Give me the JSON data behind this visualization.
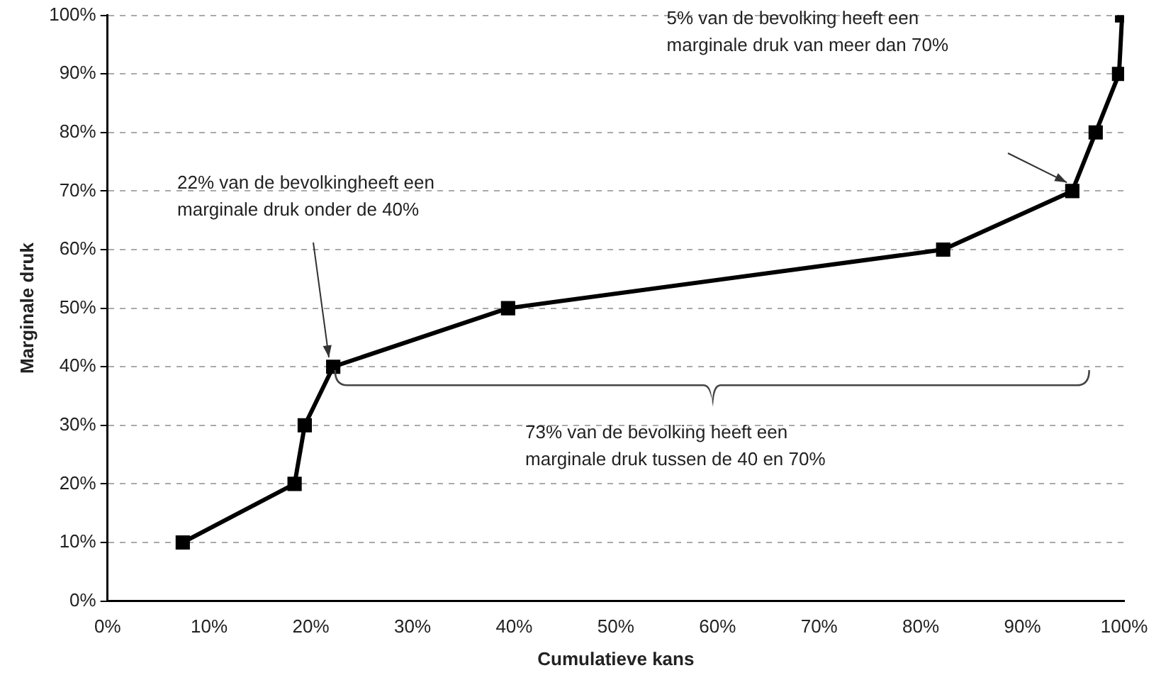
{
  "chart_data": {
    "type": "line",
    "xlabel": "Cumulatieve kans",
    "ylabel": "Marginale druk",
    "x": [
      7.4,
      18.4,
      19.4,
      22.2,
      39.4,
      82.2,
      94.9,
      97.2,
      99.5,
      99.8
    ],
    "series": [
      {
        "color": "#000000",
        "values": [
          10,
          20,
          30,
          40,
          50,
          60,
          70,
          80,
          90,
          100
        ]
      }
    ],
    "xlim": [
      0,
      100
    ],
    "ylim": [
      0,
      100
    ],
    "xticks": [
      {
        "value": 0,
        "label": "0%"
      },
      {
        "value": 10,
        "label": "10%"
      },
      {
        "value": 20,
        "label": "20%"
      },
      {
        "value": 30,
        "label": "30%"
      },
      {
        "value": 40,
        "label": "40%"
      },
      {
        "value": 50,
        "label": "50%"
      },
      {
        "value": 60,
        "label": "60%"
      },
      {
        "value": 70,
        "label": "70%"
      },
      {
        "value": 80,
        "label": "80%"
      },
      {
        "value": 90,
        "label": "90%"
      },
      {
        "value": 100,
        "label": "100%"
      }
    ],
    "yticks": [
      {
        "value": 0,
        "label": "0%"
      },
      {
        "value": 10,
        "label": "10%"
      },
      {
        "value": 20,
        "label": "20%"
      },
      {
        "value": 30,
        "label": "30%"
      },
      {
        "value": 40,
        "label": "40%"
      },
      {
        "value": 50,
        "label": "50%"
      },
      {
        "value": 60,
        "label": "60%"
      },
      {
        "value": 70,
        "label": "70%"
      },
      {
        "value": 80,
        "label": "80%"
      },
      {
        "value": 90,
        "label": "90%"
      },
      {
        "value": 100,
        "label": "100%"
      }
    ],
    "grid": "y",
    "legend": false,
    "marker": "square",
    "line_style": "solid",
    "annotations": [
      {
        "text": "22% van de bevolkingheeft een marginale druk onder de 40%",
        "x": 22.2,
        "y": 40
      },
      "5% van de bevolking heeft een marginale druk van meer dan 70%",
      "73% van de bevolking heeft een marginale druk tussen de 40 en 70%"
    ]
  }
}
